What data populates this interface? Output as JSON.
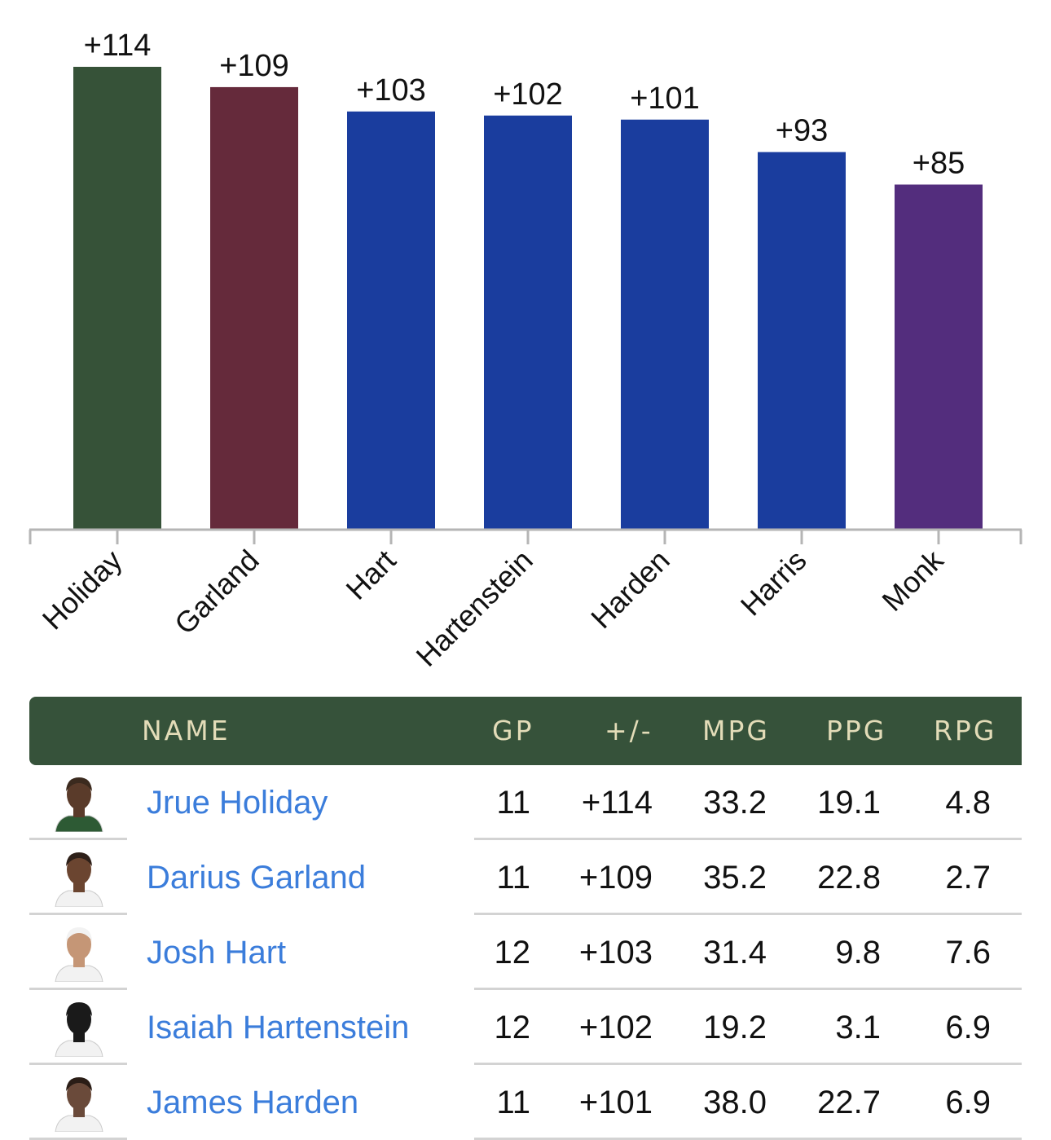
{
  "chart_data": {
    "type": "bar",
    "categories": [
      "Holiday",
      "Garland",
      "Hart",
      "Hartenstein",
      "Harden",
      "Harris",
      "Monk"
    ],
    "values": [
      114,
      109,
      103,
      102,
      101,
      93,
      85
    ],
    "value_labels": [
      "+114",
      "+109",
      "+103",
      "+102",
      "+101",
      "+93",
      "+85"
    ],
    "bar_colors": [
      "#365238",
      "#652a3b",
      "#1a3d9e",
      "#1a3d9e",
      "#1a3d9e",
      "#1a3d9e",
      "#532d7d"
    ],
    "ylim": [
      0,
      114
    ],
    "grid": false,
    "legend": "none"
  },
  "table": {
    "header_color": "#36523a",
    "header_text_color": "#e3dcb8",
    "columns": [
      "NAME",
      "GP",
      "+/-",
      "MPG",
      "PPG",
      "RPG"
    ],
    "rows": [
      {
        "name": "Jrue Holiday",
        "gp": "11",
        "pm": "+114",
        "mpg": "33.2",
        "ppg": "19.1",
        "rpg": "4.8",
        "jersey": "#2d5a34",
        "skin": "#5a3b2a",
        "hair": "#3b2a1e"
      },
      {
        "name": "Darius Garland",
        "gp": "11",
        "pm": "+109",
        "mpg": "35.2",
        "ppg": "22.8",
        "rpg": "2.7",
        "jersey": "#f2f2f2",
        "skin": "#6b4530",
        "hair": "#2e2019"
      },
      {
        "name": "Josh Hart",
        "gp": "12",
        "pm": "+103",
        "mpg": "31.4",
        "ppg": "9.8",
        "rpg": "7.6",
        "jersey": "#f2f2f2",
        "skin": "#c59676",
        "hair": "#f2f2f2"
      },
      {
        "name": "Isaiah Hartenstein",
        "gp": "12",
        "pm": "+102",
        "mpg": "19.2",
        "ppg": "3.1",
        "rpg": "6.9",
        "jersey": "#f2f2f2",
        "skin": "#1a1a1a",
        "hair": "#1a1a1a"
      },
      {
        "name": "James Harden",
        "gp": "11",
        "pm": "+101",
        "mpg": "38.0",
        "ppg": "22.7",
        "rpg": "6.9",
        "jersey": "#f2f2f2",
        "skin": "#6a4a3a",
        "hair": "#2a1d16"
      }
    ]
  }
}
